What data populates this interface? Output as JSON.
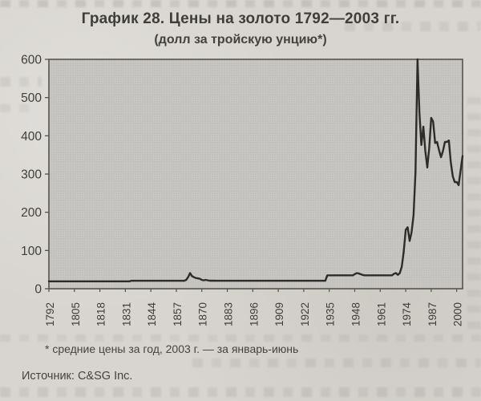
{
  "chart_data": {
    "type": "line",
    "title": "График 28. Цены на золото 1792—2003 гг.",
    "subtitle": "(долл за тройскую унцию*)",
    "footnote": "* средние цены за год, 2003 г. — за январь-июнь",
    "source": "Источник: C&SG Inc.",
    "xlabel": "",
    "ylabel": "",
    "x_range": [
      1792,
      2003
    ],
    "ylim": [
      0,
      600
    ],
    "y_ticks": [
      0,
      100,
      200,
      300,
      400,
      500,
      600
    ],
    "x_ticks": [
      1792,
      1805,
      1818,
      1831,
      1844,
      1857,
      1870,
      1883,
      1896,
      1909,
      1922,
      1935,
      1948,
      1961,
      1974,
      1987,
      2000
    ],
    "grid": false,
    "legend": null,
    "series": [
      {
        "name": "Цена золота, долл за тройскую унцию (среднегодовая)",
        "points": [
          [
            1792,
            19.4
          ],
          [
            1800,
            19.4
          ],
          [
            1810,
            19.4
          ],
          [
            1820,
            19.4
          ],
          [
            1833,
            19.4
          ],
          [
            1834,
            20.7
          ],
          [
            1845,
            20.7
          ],
          [
            1861,
            20.7
          ],
          [
            1862,
            23
          ],
          [
            1863,
            30
          ],
          [
            1864,
            41
          ],
          [
            1865,
            33
          ],
          [
            1866,
            30
          ],
          [
            1867,
            28
          ],
          [
            1868,
            27
          ],
          [
            1869,
            26
          ],
          [
            1870,
            23
          ],
          [
            1871,
            22
          ],
          [
            1872,
            23
          ],
          [
            1873,
            22
          ],
          [
            1874,
            21
          ],
          [
            1875,
            21
          ],
          [
            1876,
            21
          ],
          [
            1878,
            20.7
          ],
          [
            1890,
            20.7
          ],
          [
            1900,
            20.7
          ],
          [
            1910,
            20.7
          ],
          [
            1920,
            20.7
          ],
          [
            1933,
            20.7
          ],
          [
            1934,
            35
          ],
          [
            1940,
            35
          ],
          [
            1947,
            35
          ],
          [
            1948,
            38
          ],
          [
            1949,
            41
          ],
          [
            1950,
            40
          ],
          [
            1951,
            38
          ],
          [
            1952,
            36
          ],
          [
            1953,
            35
          ],
          [
            1960,
            35
          ],
          [
            1967,
            35
          ],
          [
            1968,
            39
          ],
          [
            1969,
            41
          ],
          [
            1970,
            36
          ],
          [
            1971,
            41
          ],
          [
            1972,
            58
          ],
          [
            1973,
            97
          ],
          [
            1974,
            154
          ],
          [
            1975,
            161
          ],
          [
            1976,
            125
          ],
          [
            1977,
            148
          ],
          [
            1978,
            193
          ],
          [
            1979,
            306
          ],
          [
            1980,
            608
          ],
          [
            1981,
            460
          ],
          [
            1982,
            376
          ],
          [
            1983,
            424
          ],
          [
            1984,
            361
          ],
          [
            1985,
            317
          ],
          [
            1986,
            368
          ],
          [
            1987,
            447
          ],
          [
            1988,
            437
          ],
          [
            1989,
            381
          ],
          [
            1990,
            384
          ],
          [
            1991,
            362
          ],
          [
            1992,
            344
          ],
          [
            1993,
            360
          ],
          [
            1994,
            384
          ],
          [
            1995,
            384
          ],
          [
            1996,
            388
          ],
          [
            1997,
            331
          ],
          [
            1998,
            294
          ],
          [
            1999,
            279
          ],
          [
            2000,
            279
          ],
          [
            2001,
            271
          ],
          [
            2002,
            310
          ],
          [
            2003,
            347
          ]
        ]
      }
    ],
    "colors": {
      "line": "#2e2c29",
      "plot_fill": "#c9c7c3",
      "plot_dot": "#b9b7b3",
      "axis": "#55524e",
      "paper": "#d8d5d0",
      "ink": "#403e3a"
    }
  }
}
